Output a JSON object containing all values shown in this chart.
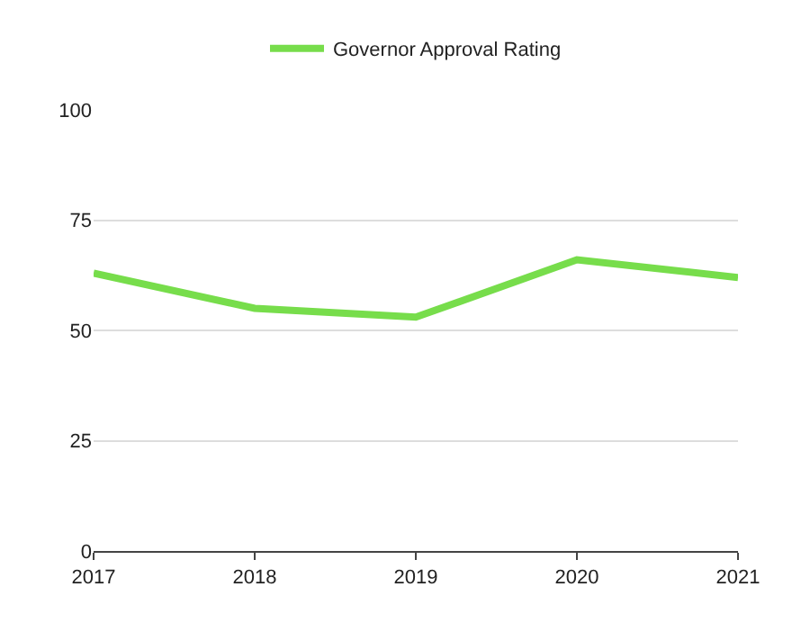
{
  "chart_data": {
    "type": "line",
    "x": [
      2017,
      2018,
      2019,
      2020,
      2021
    ],
    "series": [
      {
        "name": "Governor Approval Rating",
        "color": "#77dd4b",
        "values": [
          63,
          55,
          53,
          66,
          62
        ]
      }
    ],
    "xlim": [
      2017,
      2021
    ],
    "xticks": [
      2017,
      2018,
      2019,
      2020,
      2021
    ],
    "ylim": [
      0,
      100
    ],
    "yticks": [
      0,
      25,
      50,
      75,
      100
    ],
    "grid": "y",
    "legend": "top",
    "marker": "none",
    "line_style": "solid"
  }
}
